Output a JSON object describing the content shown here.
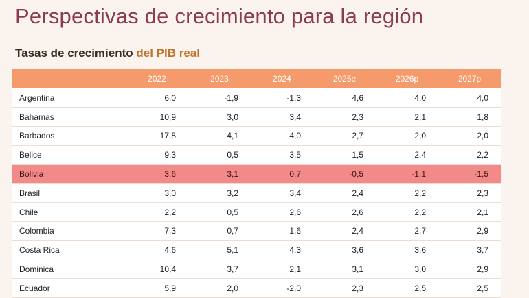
{
  "header": {
    "title": "Perspectivas de crecimiento para la región",
    "subtitle_part1": "Tasas de crecimiento",
    "subtitle_part2": "del PIB real"
  },
  "table": {
    "columns": [
      "",
      "2022",
      "2023",
      "2024",
      "2025e",
      "2026p",
      "2027p"
    ],
    "highlight_row": "Bolivia",
    "rows": [
      {
        "country": "Argentina",
        "values": [
          "6,0",
          "-1,9",
          "-1,3",
          "4,6",
          "4,0",
          "4,0"
        ]
      },
      {
        "country": "Bahamas",
        "values": [
          "10,9",
          "3,0",
          "3,4",
          "2,3",
          "2,1",
          "1,8"
        ]
      },
      {
        "country": "Barbados",
        "values": [
          "17,8",
          "4,1",
          "4,0",
          "2,7",
          "2,0",
          "2,0"
        ]
      },
      {
        "country": "Belice",
        "values": [
          "9,3",
          "0,5",
          "3,5",
          "1,5",
          "2,4",
          "2,2"
        ]
      },
      {
        "country": "Bolivia",
        "values": [
          "3,6",
          "3,1",
          "0,7",
          "-0,5",
          "-1,1",
          "-1,5"
        ]
      },
      {
        "country": "Brasil",
        "values": [
          "3,0",
          "3,2",
          "3,4",
          "2,4",
          "2,2",
          "2,3"
        ]
      },
      {
        "country": "Chile",
        "values": [
          "2,2",
          "0,5",
          "2,6",
          "2,6",
          "2,2",
          "2,1"
        ]
      },
      {
        "country": "Colombia",
        "values": [
          "7,3",
          "0,7",
          "1,6",
          "2,4",
          "2,7",
          "2,9"
        ]
      },
      {
        "country": "Costa Rica",
        "values": [
          "4,6",
          "5,1",
          "4,3",
          "3,6",
          "3,6",
          "3,7"
        ]
      },
      {
        "country": "Dominica",
        "values": [
          "10,4",
          "3,7",
          "2,1",
          "3,1",
          "3,0",
          "2,9"
        ]
      },
      {
        "country": "Ecuador",
        "values": [
          "5,9",
          "2,0",
          "-2,0",
          "2,3",
          "2,5",
          "2,5"
        ]
      }
    ]
  },
  "colors": {
    "title": "#8c3a4e",
    "header_bg": "#f59a6b",
    "highlight_bg": "#f38a8a",
    "subtitle_accent": "#c0732a"
  }
}
